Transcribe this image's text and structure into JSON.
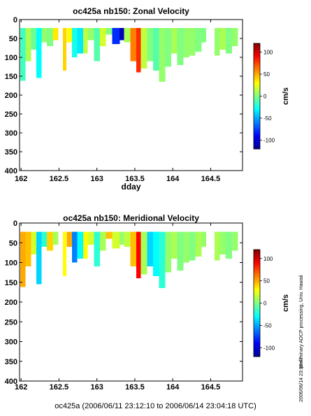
{
  "footer": "oc425a (2006/06/11 23:12:10 to 2006/06/14 23:04:18 UTC)",
  "side_note": "preliminary ADCP processing,   Univ. Hawaii",
  "side_stamp": "2006/06/14 23:06:47",
  "colormap": [
    "#00008f",
    "#0000ff",
    "#0080ff",
    "#00ffff",
    "#80ff80",
    "#ffff00",
    "#ff8000",
    "#ff0000",
    "#800000"
  ],
  "chart_data": [
    {
      "type": "heatmap",
      "title": "oc425a nb150: Zonal Velocity",
      "xlabel": "dday",
      "ylabel": "",
      "xlim": [
        161.98,
        164.92
      ],
      "ylim": [
        400,
        0
      ],
      "x_ticks": [
        162,
        162.5,
        163,
        163.5,
        164,
        164.5
      ],
      "x_tick_labels": [
        "162",
        "162.5",
        "163",
        "163.5",
        "164",
        "164.5"
      ],
      "y_ticks": [
        0,
        50,
        100,
        150,
        200,
        250,
        300,
        350,
        400
      ],
      "y_tick_labels": [
        "0",
        "50",
        "100",
        "150",
        "200",
        "250",
        "300",
        "350",
        "400"
      ],
      "colorbar": {
        "label": "cm/s",
        "min": -120,
        "max": 120,
        "ticks": [
          100,
          50,
          0,
          -50,
          -100
        ],
        "tick_labels": [
          "100",
          "50",
          "0",
          "-50",
          "-100"
        ]
      },
      "depth_top": 22,
      "columns": [
        {
          "x0": 161.99,
          "x1": 162.06,
          "v": -15,
          "bottom": 162
        },
        {
          "x0": 162.06,
          "x1": 162.13,
          "v": 10,
          "bottom": 110
        },
        {
          "x0": 162.13,
          "x1": 162.2,
          "v": -5,
          "bottom": 80
        },
        {
          "x0": 162.2,
          "x1": 162.27,
          "v": -30,
          "bottom": 155
        },
        {
          "x0": 162.27,
          "x1": 162.34,
          "v": 5,
          "bottom": 60
        },
        {
          "x0": 162.34,
          "x1": 162.42,
          "v": 0,
          "bottom": 70
        },
        {
          "x0": 162.42,
          "x1": 162.49,
          "v": 35,
          "bottom": 55
        },
        {
          "x0": 162.55,
          "x1": 162.6,
          "v": 40,
          "bottom": 135
        },
        {
          "x0": 162.6,
          "x1": 162.67,
          "v": 30,
          "bottom": 60
        },
        {
          "x0": 162.67,
          "x1": 162.74,
          "v": -25,
          "bottom": 100
        },
        {
          "x0": 162.74,
          "x1": 162.82,
          "v": -35,
          "bottom": 90
        },
        {
          "x0": 162.82,
          "x1": 162.88,
          "v": 15,
          "bottom": 90
        },
        {
          "x0": 162.88,
          "x1": 162.96,
          "v": 5,
          "bottom": 55
        },
        {
          "x0": 162.96,
          "x1": 163.04,
          "v": -10,
          "bottom": 110
        },
        {
          "x0": 163.04,
          "x1": 163.12,
          "v": 20,
          "bottom": 70
        },
        {
          "x0": 163.12,
          "x1": 163.2,
          "v": 0,
          "bottom": 40
        },
        {
          "x0": 163.2,
          "x1": 163.3,
          "v": -80,
          "bottom": 65
        },
        {
          "x0": 163.3,
          "x1": 163.36,
          "v": -110,
          "bottom": 55
        },
        {
          "x0": 163.36,
          "x1": 163.44,
          "v": 10,
          "bottom": 60
        },
        {
          "x0": 163.44,
          "x1": 163.52,
          "v": 60,
          "bottom": 110
        },
        {
          "x0": 163.52,
          "x1": 163.58,
          "v": 80,
          "bottom": 140
        },
        {
          "x0": 163.58,
          "x1": 163.66,
          "v": 15,
          "bottom": 130
        },
        {
          "x0": 163.66,
          "x1": 163.74,
          "v": 0,
          "bottom": 110
        },
        {
          "x0": 163.74,
          "x1": 163.82,
          "v": -10,
          "bottom": 135
        },
        {
          "x0": 163.82,
          "x1": 163.9,
          "v": 5,
          "bottom": 165
        },
        {
          "x0": 163.9,
          "x1": 163.98,
          "v": 0,
          "bottom": 125
        },
        {
          "x0": 163.98,
          "x1": 164.06,
          "v": 10,
          "bottom": 90
        },
        {
          "x0": 164.06,
          "x1": 164.14,
          "v": 0,
          "bottom": 120
        },
        {
          "x0": 164.14,
          "x1": 164.22,
          "v": 5,
          "bottom": 100
        },
        {
          "x0": 164.22,
          "x1": 164.3,
          "v": 5,
          "bottom": 95
        },
        {
          "x0": 164.3,
          "x1": 164.38,
          "v": 0,
          "bottom": 85
        },
        {
          "x0": 164.38,
          "x1": 164.44,
          "v": 0,
          "bottom": 60
        },
        {
          "x0": 164.55,
          "x1": 164.62,
          "v": 5,
          "bottom": 95
        },
        {
          "x0": 164.62,
          "x1": 164.7,
          "v": 10,
          "bottom": 80
        },
        {
          "x0": 164.7,
          "x1": 164.78,
          "v": 0,
          "bottom": 90
        },
        {
          "x0": 164.78,
          "x1": 164.86,
          "v": 5,
          "bottom": 70
        }
      ]
    },
    {
      "type": "heatmap",
      "title": "oc425a nb150: Meridional Velocity",
      "xlabel": "dday",
      "ylabel": "",
      "xlim": [
        161.98,
        164.92
      ],
      "ylim": [
        400,
        0
      ],
      "x_ticks": [
        162,
        162.5,
        163,
        163.5,
        164,
        164.5
      ],
      "x_tick_labels": [
        "162",
        "162.5",
        "163",
        "163.5",
        "164",
        "164.5"
      ],
      "y_ticks": [
        0,
        50,
        100,
        150,
        200,
        250,
        300,
        350,
        400
      ],
      "y_tick_labels": [
        "0",
        "50",
        "100",
        "150",
        "200",
        "250",
        "300",
        "350",
        "400"
      ],
      "colorbar": {
        "label": "cm/s",
        "min": -120,
        "max": 120,
        "ticks": [
          100,
          50,
          0,
          -50,
          -100
        ],
        "tick_labels": [
          "100",
          "50",
          "0",
          "-50",
          "-100"
        ]
      },
      "depth_top": 22,
      "columns": [
        {
          "x0": 161.99,
          "x1": 162.06,
          "v": 50,
          "bottom": 162
        },
        {
          "x0": 162.06,
          "x1": 162.13,
          "v": 45,
          "bottom": 110
        },
        {
          "x0": 162.13,
          "x1": 162.2,
          "v": 20,
          "bottom": 80
        },
        {
          "x0": 162.2,
          "x1": 162.27,
          "v": -40,
          "bottom": 155
        },
        {
          "x0": 162.27,
          "x1": 162.34,
          "v": -20,
          "bottom": 60
        },
        {
          "x0": 162.34,
          "x1": 162.42,
          "v": 40,
          "bottom": 70
        },
        {
          "x0": 162.42,
          "x1": 162.49,
          "v": 10,
          "bottom": 55
        },
        {
          "x0": 162.55,
          "x1": 162.6,
          "v": 30,
          "bottom": 135
        },
        {
          "x0": 162.6,
          "x1": 162.67,
          "v": 50,
          "bottom": 60
        },
        {
          "x0": 162.67,
          "x1": 162.74,
          "v": -60,
          "bottom": 100
        },
        {
          "x0": 162.74,
          "x1": 162.82,
          "v": -30,
          "bottom": 90
        },
        {
          "x0": 162.82,
          "x1": 162.88,
          "v": 30,
          "bottom": 90
        },
        {
          "x0": 162.88,
          "x1": 162.96,
          "v": 20,
          "bottom": 55
        },
        {
          "x0": 162.96,
          "x1": 163.04,
          "v": -20,
          "bottom": 110
        },
        {
          "x0": 163.04,
          "x1": 163.12,
          "v": 10,
          "bottom": 70
        },
        {
          "x0": 163.12,
          "x1": 163.2,
          "v": 45,
          "bottom": 40
        },
        {
          "x0": 163.2,
          "x1": 163.3,
          "v": 20,
          "bottom": 65
        },
        {
          "x0": 163.3,
          "x1": 163.36,
          "v": 5,
          "bottom": 55
        },
        {
          "x0": 163.36,
          "x1": 163.44,
          "v": 15,
          "bottom": 60
        },
        {
          "x0": 163.44,
          "x1": 163.52,
          "v": 45,
          "bottom": 110
        },
        {
          "x0": 163.52,
          "x1": 163.58,
          "v": 90,
          "bottom": 140
        },
        {
          "x0": 163.58,
          "x1": 163.66,
          "v": 10,
          "bottom": 130
        },
        {
          "x0": 163.66,
          "x1": 163.74,
          "v": -40,
          "bottom": 110
        },
        {
          "x0": 163.74,
          "x1": 163.82,
          "v": -30,
          "bottom": 135
        },
        {
          "x0": 163.82,
          "x1": 163.9,
          "v": -20,
          "bottom": 165
        },
        {
          "x0": 163.9,
          "x1": 163.98,
          "v": 5,
          "bottom": 125
        },
        {
          "x0": 163.98,
          "x1": 164.06,
          "v": 10,
          "bottom": 90
        },
        {
          "x0": 164.06,
          "x1": 164.14,
          "v": 0,
          "bottom": 120
        },
        {
          "x0": 164.14,
          "x1": 164.22,
          "v": 5,
          "bottom": 100
        },
        {
          "x0": 164.22,
          "x1": 164.3,
          "v": 0,
          "bottom": 95
        },
        {
          "x0": 164.3,
          "x1": 164.38,
          "v": 10,
          "bottom": 85
        },
        {
          "x0": 164.38,
          "x1": 164.44,
          "v": 5,
          "bottom": 60
        },
        {
          "x0": 164.55,
          "x1": 164.62,
          "v": 10,
          "bottom": 95
        },
        {
          "x0": 164.62,
          "x1": 164.7,
          "v": 5,
          "bottom": 80
        },
        {
          "x0": 164.7,
          "x1": 164.78,
          "v": 0,
          "bottom": 90
        },
        {
          "x0": 164.78,
          "x1": 164.86,
          "v": 5,
          "bottom": 70
        }
      ]
    }
  ]
}
